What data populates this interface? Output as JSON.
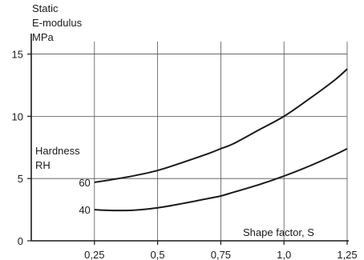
{
  "chart_data": {
    "type": "line",
    "ylabel_lines": [
      "Static",
      "E-modulus",
      "MPa"
    ],
    "xlabel": "Shape factor, S",
    "legend_title_lines": [
      "Hardness",
      "RH"
    ],
    "xlim": [
      0,
      1.25
    ],
    "ylim": [
      0,
      16
    ],
    "x_ticks": [
      0.25,
      0.5,
      0.75,
      1.0,
      1.25
    ],
    "x_tick_labels": [
      "0,25",
      "0,5",
      "0,75",
      "1,0",
      "1,25"
    ],
    "y_ticks": [
      0,
      5,
      10,
      15
    ],
    "y_tick_labels": [
      "0",
      "5",
      "10",
      "15"
    ],
    "grid": true,
    "series": [
      {
        "name": "60",
        "x": [
          0.25,
          0.3,
          0.4,
          0.5,
          0.6,
          0.7,
          0.75,
          0.8,
          0.9,
          1.0,
          1.1,
          1.2,
          1.25
        ],
        "y": [
          4.7,
          4.85,
          5.2,
          5.65,
          6.3,
          7.0,
          7.4,
          7.8,
          8.9,
          10.0,
          11.4,
          12.9,
          13.8
        ]
      },
      {
        "name": "40",
        "x": [
          0.25,
          0.3,
          0.4,
          0.5,
          0.6,
          0.7,
          0.75,
          0.8,
          0.9,
          1.0,
          1.1,
          1.2,
          1.25
        ],
        "y": [
          2.5,
          2.45,
          2.45,
          2.65,
          3.0,
          3.4,
          3.6,
          3.9,
          4.5,
          5.2,
          6.0,
          6.9,
          7.4
        ]
      }
    ]
  }
}
